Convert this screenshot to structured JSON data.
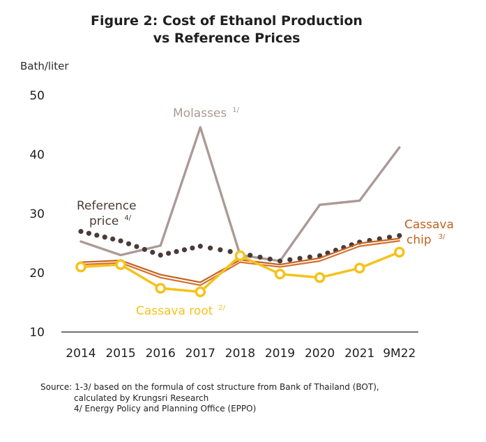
{
  "title_line1": "Figure 2: Cost of Ethanol Production",
  "title_line2": "vs Reference Prices",
  "chart_data": {
    "type": "line",
    "ylabel": "Bath/liter",
    "ylim": [
      10,
      50
    ],
    "yticks": [
      10,
      20,
      30,
      40,
      50
    ],
    "categories": [
      "2014",
      "2015",
      "2016",
      "2017",
      "2018",
      "2019",
      "2020",
      "2021",
      "9M22"
    ],
    "series": [
      {
        "name": "Molasses",
        "note": "1/",
        "color": "#ab9a96",
        "style": "solid",
        "values": [
          25.3,
          23.0,
          24.6,
          44.6,
          23.0,
          22.0,
          31.5,
          32.2,
          41.2
        ]
      },
      {
        "name": "Reference price",
        "note": "4/",
        "color": "#4a3b38",
        "style": "dotted",
        "values": [
          27.0,
          25.4,
          23.0,
          24.5,
          23.3,
          22.0,
          22.9,
          25.2,
          26.3
        ]
      },
      {
        "name": "Cassava chip",
        "note": "3/",
        "color": "#c1621f",
        "style": "solid",
        "values": [
          21.8,
          22.1,
          19.7,
          18.4,
          22.2,
          21.4,
          22.5,
          25.0,
          25.8
        ]
      },
      {
        "name": "Cassava chip (lower)",
        "color": "#d4702c",
        "style": "solid",
        "unlabeled": true,
        "values": [
          21.4,
          21.7,
          19.2,
          17.9,
          21.8,
          21.0,
          22.0,
          24.5,
          25.4
        ]
      },
      {
        "name": "Cassava root",
        "note": "2/",
        "color": "#f5c21b",
        "style": "solid-markers",
        "values": [
          21.0,
          21.4,
          17.4,
          16.8,
          22.9,
          19.8,
          19.2,
          20.8,
          23.5
        ]
      }
    ],
    "labels": {
      "molasses": "Molasses",
      "molasses_note": "1/",
      "reference_line1": "Reference",
      "reference_line2": "price",
      "reference_note": "4/",
      "cassava_chip_line1": "Cassava",
      "cassava_chip_line2": "chip",
      "cassava_chip_note": "3/",
      "cassava_root": "Cassava root",
      "cassava_root_note": "2/"
    }
  },
  "source": {
    "line1": "Source: 1-3/ based on the formula of cost structure from Bank of Thailand (BOT),",
    "line2": "calculated by Krungsri Research",
    "line3": "4/ Energy Policy and Planning Office (EPPO)"
  }
}
